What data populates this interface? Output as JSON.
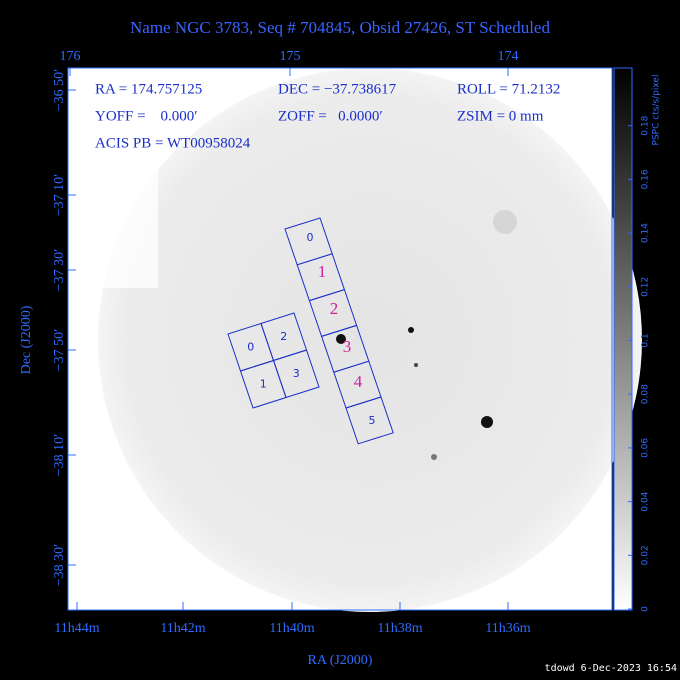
{
  "header": {
    "title": "Name NGC 3783, Seq # 704845, Obsid 27426, ST Scheduled"
  },
  "axes": {
    "top_labels": [
      "176",
      "175",
      "174"
    ],
    "left_labels": [
      "−36 50′",
      "−37 10′",
      "−37 30′",
      "−37 50′",
      "−38 10′",
      "−38 30′"
    ],
    "bottom_labels": [
      "11h44m",
      "11h42m",
      "11h40m",
      "11h38m",
      "11h36m"
    ],
    "x_title": "RA (J2000)",
    "y_title": "Dec (J2000)"
  },
  "info": [
    "RA = 174.757125",
    "DEC = −37.738617",
    "ROLL = 71.2132",
    "YOFF =    0.000′",
    "ZOFF =   0.0000′",
    "ZSIM = 0 mm",
    "ACIS PB = WT00958024"
  ],
  "chips": {
    "acis_i": [
      "0",
      "1",
      "2",
      "3"
    ],
    "acis_s": [
      "0",
      "1",
      "2",
      "3",
      "4",
      "5"
    ]
  },
  "colorbar": {
    "labels": [
      "0",
      "0.02",
      "0.04",
      "0.06",
      "0.08",
      "0.1",
      "0.12",
      "0.14",
      "0.16",
      "0.18"
    ],
    "title": "PSPC cts/s/pixel"
  },
  "footer": "tdowd  6-Dec-2023 16:54"
}
